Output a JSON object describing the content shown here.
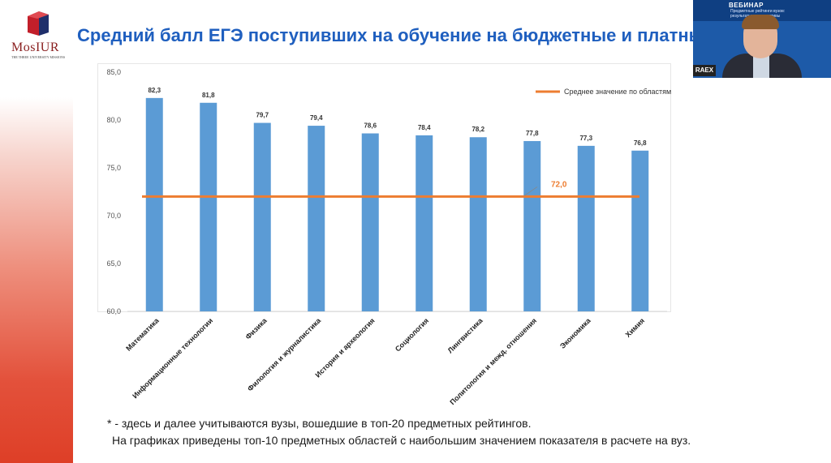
{
  "logo": {
    "name": "MosIUR",
    "tagline": "THE THREE UNIVERSITY MISSIONS"
  },
  "title": "Средний балл ЕГЭ поступивших на обучение на бюджетные и платные",
  "webinar": {
    "label": "ВЕБИНАР",
    "subtitle": "Предметные рейтинги вузов: результаты и перспективы",
    "badge": "RAEX"
  },
  "chart_data": {
    "type": "bar",
    "categories": [
      "Математика",
      "Информационные технологии",
      "Физика",
      "Филология и журналистика",
      "История и археология",
      "Социология",
      "Лингвистика",
      "Политология и межд. отношения",
      "Экономика",
      "Химия"
    ],
    "values": [
      82.3,
      81.8,
      79.7,
      79.4,
      78.6,
      78.4,
      78.2,
      77.8,
      77.3,
      76.8
    ],
    "value_labels": [
      "82,3",
      "81,8",
      "79,7",
      "79,4",
      "78,6",
      "78,4",
      "78,2",
      "77,8",
      "77,3",
      "76,8"
    ],
    "ylim": [
      60,
      85
    ],
    "yticks": [
      60,
      65,
      70,
      75,
      80,
      85
    ],
    "ytick_labels": [
      "60,0",
      "65,0",
      "70,0",
      "75,0",
      "80,0",
      "85,0"
    ],
    "reference_line": {
      "name": "Среднее значение по областям",
      "value": 72.0,
      "label": "72,0"
    },
    "legend_position": "top-right",
    "grid": false,
    "colors": {
      "bar": "#5b9bd5",
      "reference": "#ed7d31"
    }
  },
  "footnotes": [
    "* - здесь и далее учитываются вузы, вошедшие в топ-20 предметных рейтингов.",
    "На графиках приведены топ-10 предметных областей с наибольшим значением показателя в расчете на вуз."
  ]
}
